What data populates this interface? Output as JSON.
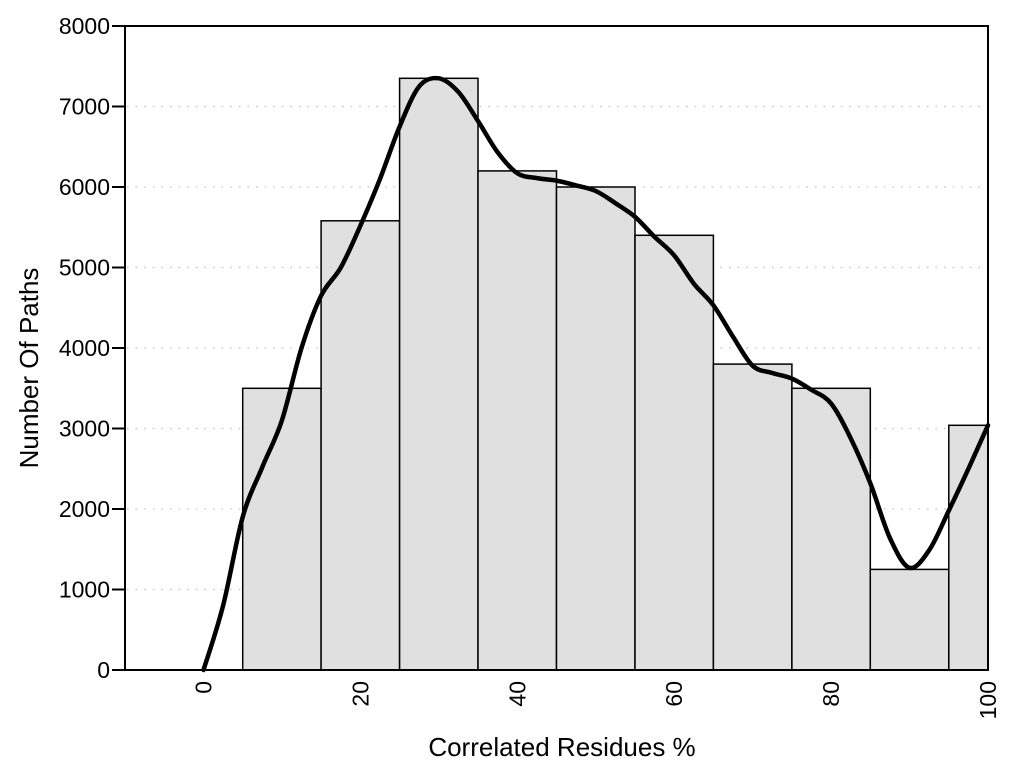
{
  "chart_data": {
    "type": "bar",
    "subtype": "histogram-with-smoothed-curve",
    "title": "",
    "xlabel": "Correlated Residues %",
    "ylabel": "Number Of Paths",
    "xlim": [
      -10,
      100
    ],
    "ylim": [
      0,
      8000
    ],
    "x_ticks": [
      0,
      20,
      40,
      60,
      80,
      100
    ],
    "y_ticks": [
      0,
      1000,
      2000,
      3000,
      4000,
      5000,
      6000,
      7000,
      8000
    ],
    "grid": {
      "horizontal": true,
      "vertical": false,
      "style": "dotted"
    },
    "legend": {
      "visible": false
    },
    "bars": {
      "bin_edges": [
        5,
        15,
        25,
        35,
        45,
        55,
        65,
        75,
        85,
        95,
        100
      ],
      "values": [
        3500,
        5580,
        7350,
        6200,
        6000,
        5400,
        3800,
        3500,
        1250,
        3040
      ]
    },
    "curve": {
      "name": "smoothed-fit",
      "points": [
        [
          0,
          0
        ],
        [
          2.5,
          800
        ],
        [
          5,
          1900
        ],
        [
          7.5,
          2520
        ],
        [
          10,
          3100
        ],
        [
          12.5,
          4000
        ],
        [
          15,
          4650
        ],
        [
          17.5,
          5000
        ],
        [
          20,
          5520
        ],
        [
          22.5,
          6100
        ],
        [
          25,
          6750
        ],
        [
          27.5,
          7250
        ],
        [
          30,
          7350
        ],
        [
          32.5,
          7180
        ],
        [
          35,
          6820
        ],
        [
          37.5,
          6430
        ],
        [
          40,
          6170
        ],
        [
          42.5,
          6110
        ],
        [
          45,
          6080
        ],
        [
          47.5,
          6020
        ],
        [
          50,
          5950
        ],
        [
          52.5,
          5800
        ],
        [
          55,
          5630
        ],
        [
          57.5,
          5380
        ],
        [
          60,
          5150
        ],
        [
          62.5,
          4800
        ],
        [
          65,
          4530
        ],
        [
          67.5,
          4140
        ],
        [
          70,
          3780
        ],
        [
          72.5,
          3690
        ],
        [
          75,
          3620
        ],
        [
          77.5,
          3480
        ],
        [
          80,
          3310
        ],
        [
          82.5,
          2880
        ],
        [
          85,
          2320
        ],
        [
          87.5,
          1640
        ],
        [
          90,
          1270
        ],
        [
          92.5,
          1490
        ],
        [
          95,
          1980
        ],
        [
          97.5,
          2500
        ],
        [
          100,
          3040
        ]
      ]
    }
  },
  "colors": {
    "background": "#ffffff",
    "bar_fill": "#e0e0e0",
    "bar_border": "#000000",
    "curve": "#000000",
    "grid": "#c4c4c4",
    "axis": "#000000",
    "text": "#000000"
  }
}
